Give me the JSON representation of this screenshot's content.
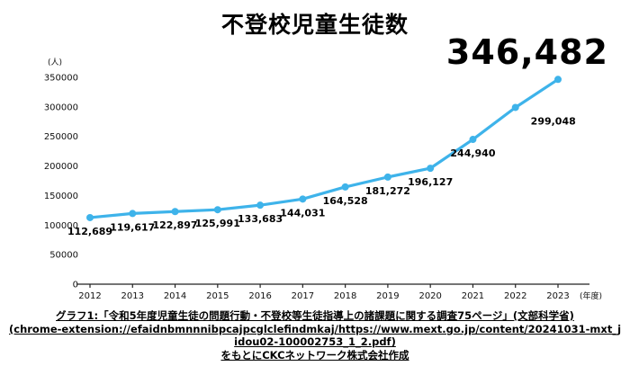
{
  "title": "不登校児童生徒数",
  "headline_value": "346,482",
  "caption": {
    "line1": "グラフ1:「令和5年度児童生徒の問題行動・不登校等生徒指導上の諸課題に関する調査75ページ」(文部科学省)",
    "line2": "(chrome-extension://efaidnbmnnnibpcajpcglclefindmkaj/https://www.mext.go.jp/content/20241031-mxt_jidou02-100002753_1_2.pdf)",
    "line3": "をもとにCKCネットワーク株式会社作成"
  },
  "chart_data": {
    "type": "line",
    "title": "不登校児童生徒数",
    "categories": [
      "2012",
      "2013",
      "2014",
      "2015",
      "2016",
      "2017",
      "2018",
      "2019",
      "2020",
      "2021",
      "2022",
      "2023"
    ],
    "values": [
      112689,
      119617,
      122897,
      125991,
      133683,
      144031,
      164528,
      181272,
      196127,
      244940,
      299048,
      346482
    ],
    "labels": [
      "112,689",
      "119,617",
      "122,897",
      "125,991",
      "133,683",
      "144,031",
      "164,528",
      "181,272",
      "196,127",
      "244,940",
      "299,048",
      "346,482"
    ],
    "ylabel": "(人)",
    "xlabel": "(年度)",
    "ylim": [
      0,
      350000
    ],
    "ytick_step": 50000,
    "line_color": "#3eb3ea",
    "grid": false,
    "legend": "none"
  }
}
